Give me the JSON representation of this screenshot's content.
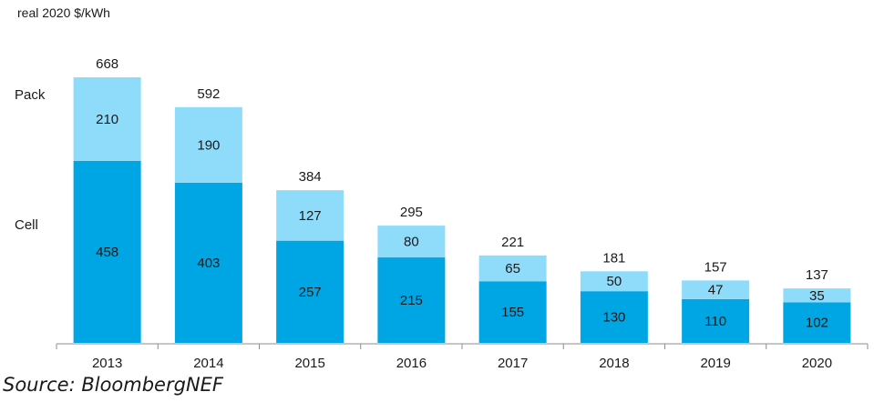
{
  "chart_data": {
    "type": "bar",
    "stacked": true,
    "unit_label": "real 2020 $/kWh",
    "categories": [
      "2013",
      "2014",
      "2015",
      "2016",
      "2017",
      "2018",
      "2019",
      "2020"
    ],
    "series": [
      {
        "name": "Cell",
        "values": [
          458,
          403,
          257,
          215,
          155,
          130,
          110,
          102
        ],
        "color": "#00a5e3"
      },
      {
        "name": "Pack",
        "values": [
          210,
          190,
          127,
          80,
          65,
          50,
          47,
          35
        ],
        "color": "#8fdcfa"
      }
    ],
    "totals": [
      668,
      592,
      384,
      295,
      221,
      181,
      157,
      137
    ],
    "ylim": [
      0,
      700
    ],
    "legend": {
      "pack_label": "Pack",
      "cell_label": "Cell",
      "placement": "left"
    }
  },
  "source": "Source: BloombergNEF"
}
